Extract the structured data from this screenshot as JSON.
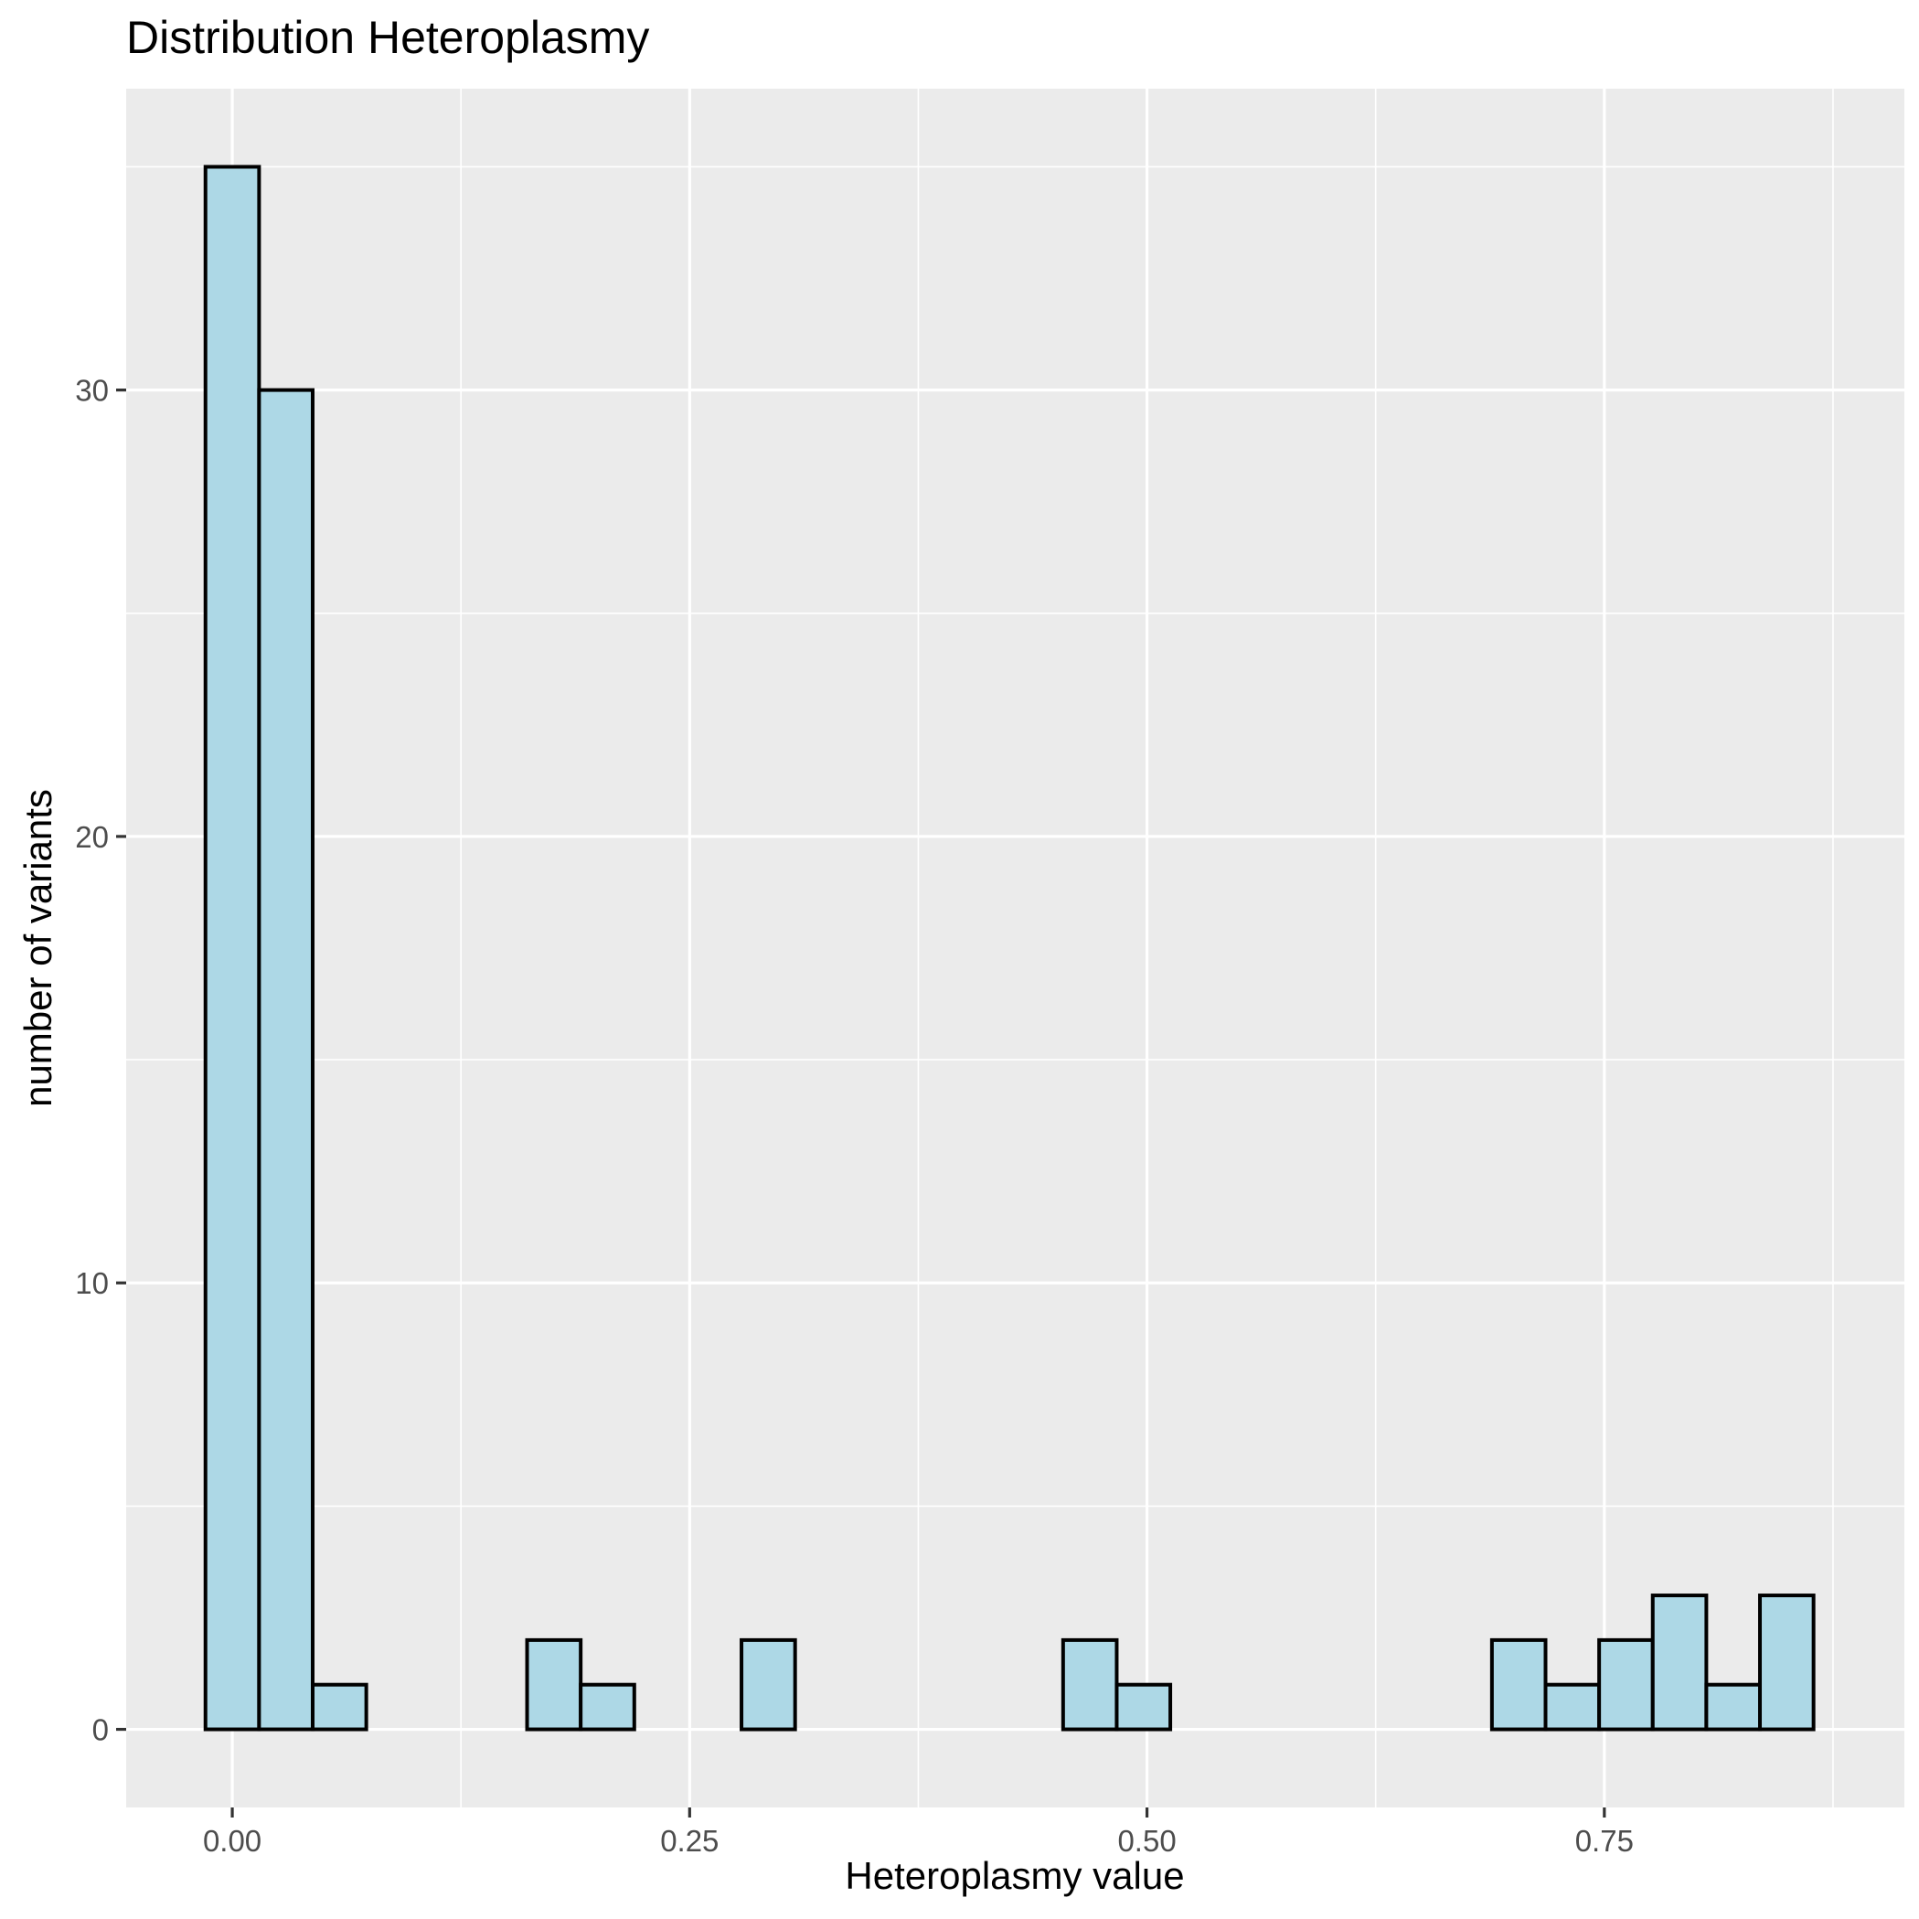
{
  "chart_data": {
    "type": "bar",
    "title": "Distribution Heteroplasmy",
    "xlabel": "Heteroplasmy value",
    "ylabel": "number of variants",
    "xlim": [
      -0.058,
      0.914
    ],
    "ylim": [
      -1.75,
      36.75
    ],
    "x_ticks": [
      0.0,
      0.25,
      0.5,
      0.75
    ],
    "x_tick_labels": [
      "0.00",
      "0.25",
      "0.50",
      "0.75"
    ],
    "x_minor": [
      0.125,
      0.375,
      0.625,
      0.875
    ],
    "y_ticks": [
      0,
      10,
      20,
      30
    ],
    "y_tick_labels": [
      "0",
      "10",
      "20",
      "30"
    ],
    "y_minor": [
      5,
      15,
      25,
      35
    ],
    "bin_width": 0.0293,
    "bins": [
      {
        "x": 0.0,
        "count": 35
      },
      {
        "x": 0.0293,
        "count": 30
      },
      {
        "x": 0.0586,
        "count": 1
      },
      {
        "x": 0.0879,
        "count": 0
      },
      {
        "x": 0.1172,
        "count": 0
      },
      {
        "x": 0.1465,
        "count": 0
      },
      {
        "x": 0.1758,
        "count": 2
      },
      {
        "x": 0.2051,
        "count": 1
      },
      {
        "x": 0.2344,
        "count": 0
      },
      {
        "x": 0.2637,
        "count": 0
      },
      {
        "x": 0.293,
        "count": 2
      },
      {
        "x": 0.3223,
        "count": 0
      },
      {
        "x": 0.3516,
        "count": 0
      },
      {
        "x": 0.3809,
        "count": 0
      },
      {
        "x": 0.4102,
        "count": 0
      },
      {
        "x": 0.4395,
        "count": 0
      },
      {
        "x": 0.4688,
        "count": 2
      },
      {
        "x": 0.4981,
        "count": 1
      },
      {
        "x": 0.5274,
        "count": 0
      },
      {
        "x": 0.5567,
        "count": 0
      },
      {
        "x": 0.586,
        "count": 0
      },
      {
        "x": 0.6153,
        "count": 0
      },
      {
        "x": 0.6446,
        "count": 0
      },
      {
        "x": 0.6739,
        "count": 0
      },
      {
        "x": 0.7032,
        "count": 2
      },
      {
        "x": 0.7325,
        "count": 1
      },
      {
        "x": 0.7618,
        "count": 2
      },
      {
        "x": 0.7911,
        "count": 3
      },
      {
        "x": 0.8204,
        "count": 1
      },
      {
        "x": 0.8497,
        "count": 3
      }
    ],
    "grid": true,
    "colors": {
      "bar_fill": "#add8e6",
      "bar_outline": "#000000",
      "panel": "#ebebeb",
      "grid": "#ffffff"
    }
  }
}
